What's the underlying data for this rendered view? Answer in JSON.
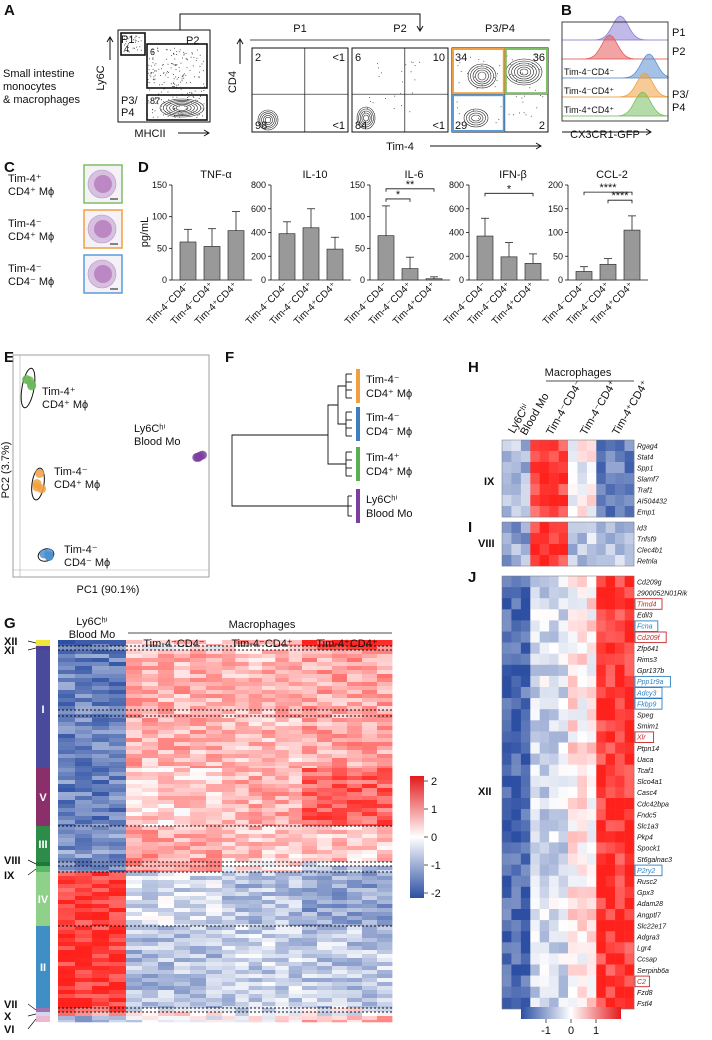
{
  "panels": {
    "A": {
      "label": "A",
      "population": "Small intestine\nmonocytes\n& macrophages",
      "xlab": "MHCII",
      "ylab": "Ly6C",
      "gates": [
        {
          "name": "P1",
          "pct": "4"
        },
        {
          "name": "P2",
          "pct": "6"
        },
        {
          "name": "P3/\nP4",
          "pct": "87"
        }
      ],
      "sub": [
        {
          "title": "P1",
          "q": [
            "2",
            "<1",
            "98",
            "<1"
          ]
        },
        {
          "title": "P2",
          "q": [
            "6",
            "10",
            "84",
            "<1"
          ]
        },
        {
          "title": "P3/P4",
          "q": [
            "34",
            "36",
            "29",
            "2"
          ]
        }
      ],
      "sub_xlab": "Tim-4",
      "sub_ylab": "CD4"
    },
    "B": {
      "label": "B",
      "xlab": "CX3CR1-GFP",
      "tracks": [
        {
          "name": "P1",
          "color": "#8e7fd6"
        },
        {
          "name": "P2",
          "color": "#e85a5a"
        },
        {
          "name": "Tim-4⁻CD4⁻",
          "color": "#5b8fd1"
        },
        {
          "name": "Tim-4⁻CD4⁺",
          "color": "#f0a040"
        },
        {
          "name": "Tim-4⁺CD4⁺",
          "color": "#78c060"
        }
      ],
      "group_label": "P3/\nP4"
    },
    "C": {
      "label": "C",
      "cells": [
        {
          "line1": "Tim-4⁺",
          "line2": "CD4⁺ Mϕ",
          "border": "#7cc062"
        },
        {
          "line1": "Tim-4⁻",
          "line2": "CD4⁺ Mϕ",
          "border": "#f0a040"
        },
        {
          "line1": "Tim-4⁻",
          "line2": "CD4⁻ Mϕ",
          "border": "#5b9bd5"
        }
      ]
    },
    "D": {
      "label": "D"
    },
    "E": {
      "label": "E",
      "xlab": "PC1 (90.1%)",
      "ylab": "PC2 (3.7%)",
      "groups": [
        {
          "line1": "Tim-4⁺",
          "line2": "CD4⁺ Mϕ",
          "color": "#6cb75a"
        },
        {
          "line1": "Tim-4⁻",
          "line2": "CD4⁺ Mϕ",
          "color": "#f0a040"
        },
        {
          "line1": "Tim-4⁻",
          "line2": "CD4⁻ Mϕ",
          "color": "#4f8fd0"
        },
        {
          "line1": "Ly6Cʰⁱ",
          "line2": "Blood Mo",
          "color": "#7b3fa0"
        }
      ]
    },
    "F": {
      "label": "F",
      "leaves": [
        {
          "line1": "Tim-4⁻",
          "line2": "CD4⁺ Mϕ",
          "color": "#f0a040"
        },
        {
          "line1": "Tim-4⁻",
          "line2": "CD4⁻ Mϕ",
          "color": "#3f7fc0"
        },
        {
          "line1": "Tim-4⁺",
          "line2": "CD4⁺ Mϕ",
          "color": "#58b050"
        },
        {
          "line1": "Ly6Cʰⁱ",
          "line2": "Blood Mo",
          "color": "#7b3fa0"
        }
      ]
    },
    "G": {
      "label": "G",
      "macro_header": "Macrophages",
      "columns": [
        "Ly6Cʰⁱ\nBlood Mo",
        "Tim-4⁻CD4⁻",
        "Tim-4⁻CD4⁺",
        "Tim-4⁺CD4⁺"
      ],
      "clusters": [
        {
          "name": "XII",
          "color": "#f2e53a"
        },
        {
          "name": "XI",
          "color": "#4c3f9a"
        },
        {
          "name": "I",
          "color": "#4a4a9c"
        },
        {
          "name": "V",
          "color": "#8a2f6a"
        },
        {
          "name": "III",
          "color": "#2e8c4a"
        },
        {
          "name": "VIII",
          "color": "#1f7a3a"
        },
        {
          "name": "IX",
          "color": "#5cb86a"
        },
        {
          "name": "IV",
          "color": "#8fd08a"
        },
        {
          "name": "II",
          "color": "#3f8fc6"
        },
        {
          "name": "VII",
          "color": "#a070b0"
        },
        {
          "name": "X",
          "color": "#d0d8f0"
        },
        {
          "name": "VI",
          "color": "#f0b8d0"
        }
      ],
      "scale_ticks": [
        "2",
        "1",
        "0",
        "-1",
        "-2"
      ]
    },
    "H": {
      "label": "H",
      "macro_header": "Macrophages",
      "columns": [
        "Ly6Cʰⁱ\nBlood Mo",
        "Tim-4⁻CD4⁻",
        "Tim-4⁻CD4⁺",
        "Tim-4⁺CD4⁺"
      ],
      "cluster": "IX",
      "genes": [
        "Rgag4",
        "Stat4",
        "Spp1",
        "Slamf7",
        "Traf1",
        "AI504432",
        "Emp1"
      ]
    },
    "I": {
      "label": "I",
      "cluster": "VIII",
      "genes": [
        "Id3",
        "Tnfsf9",
        "Clec4b1",
        "Retnla"
      ]
    },
    "J": {
      "label": "J",
      "cluster": "XII",
      "genes": [
        "Cd209g",
        "2900052N01Rik",
        "Timd4",
        "Edil3",
        "Fcna",
        "Cd209f",
        "Zfp641",
        "Rims3",
        "Gpr137b",
        "Ppp1r9a",
        "Adcy3",
        "Fkbp9",
        "Speg",
        "Smim1",
        "Xlr",
        "Ptpn14",
        "Uaca",
        "Tcaf1",
        "Slco4a1",
        "Casc4",
        "Cdc42bpa",
        "Fndc5",
        "Slc1a3",
        "Pkp4",
        "Spock1",
        "St6galnac3",
        "P2ry2",
        "Rusc2",
        "Gpx3",
        "Adam28",
        "Angptl7",
        "Slc22e17",
        "Adgra3",
        "Lgr4",
        "Ccsap",
        "Serpinb6a",
        "C2",
        "Fzd8",
        "Fstl4"
      ],
      "red_boxed": [
        "Timd4",
        "Cd209f",
        "Xlr",
        "C2"
      ],
      "blue_boxed": [
        "Fcna",
        "Ppp1r9a",
        "Adcy3",
        "Fkbp9",
        "P2ry2"
      ],
      "scale_ticks": [
        "-1",
        "0",
        "1"
      ]
    }
  },
  "chart_data": [
    {
      "type": "bar",
      "title": "TNF-α",
      "ylabel": "pg/mL",
      "ylim": [
        0,
        150
      ],
      "yticks": [
        "150",
        "100",
        "50",
        "0"
      ],
      "categories": [
        "Tim-4⁻CD4⁻",
        "Tim-4⁻CD4⁺",
        "Tim-4⁺CD4⁺"
      ],
      "values": [
        60,
        53,
        78
      ],
      "errors": [
        20,
        28,
        30
      ],
      "sig": []
    },
    {
      "type": "bar",
      "title": "IL-10",
      "ylabel": "",
      "ylim": [
        0,
        800
      ],
      "yticks": [
        "800",
        "600",
        "400",
        "200",
        "0"
      ],
      "categories": [
        "Tim-4⁻CD4⁻",
        "Tim-4⁻CD4⁺",
        "Tim-4⁺CD4⁺"
      ],
      "values": [
        390,
        440,
        260
      ],
      "errors": [
        100,
        160,
        100
      ],
      "sig": []
    },
    {
      "type": "bar",
      "title": "IL-6",
      "ylabel": "",
      "ylim": [
        0,
        150
      ],
      "yticks": [
        "150",
        "100",
        "50",
        "0"
      ],
      "categories": [
        "Tim-4⁻CD4⁻",
        "Tim-4⁻CD4⁺",
        "Tim-4⁺CD4⁺"
      ],
      "values": [
        70,
        18,
        2
      ],
      "errors": [
        47,
        18,
        3
      ],
      "sig": [
        {
          "from": 0,
          "to": 1,
          "y": 128,
          "label": "*"
        },
        {
          "from": 0,
          "to": 2,
          "y": 144,
          "label": "**"
        }
      ]
    },
    {
      "type": "bar",
      "title": "IFN-β",
      "ylabel": "",
      "ylim": [
        0,
        800
      ],
      "yticks": [
        "800",
        "600",
        "400",
        "200",
        "0"
      ],
      "categories": [
        "Tim-4⁻CD4⁻",
        "Tim-4⁻CD4⁺",
        "Tim-4⁺CD4⁺"
      ],
      "values": [
        370,
        195,
        140
      ],
      "errors": [
        150,
        120,
        80
      ],
      "sig": [
        {
          "from": 0,
          "to": 2,
          "y": 730,
          "label": "*"
        }
      ]
    },
    {
      "type": "bar",
      "title": "CCL-2",
      "ylabel": "",
      "ylim": [
        0,
        200
      ],
      "yticks": [
        "200",
        "150",
        "100",
        "50",
        "0"
      ],
      "categories": [
        "Tim-4⁻CD4⁻",
        "Tim-4⁻CD4⁺",
        "Tim-4⁺CD4⁺"
      ],
      "values": [
        18,
        33,
        105
      ],
      "errors": [
        10,
        12,
        30
      ],
      "sig": [
        {
          "from": 0,
          "to": 2,
          "y": 185,
          "label": "****"
        },
        {
          "from": 1,
          "to": 2,
          "y": 168,
          "label": "****"
        }
      ]
    }
  ]
}
